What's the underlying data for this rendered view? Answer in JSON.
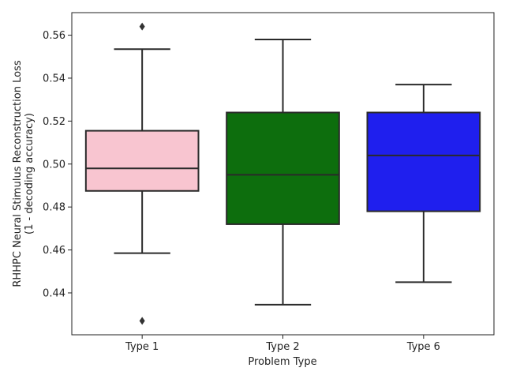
{
  "chart_data": {
    "type": "box",
    "title": "",
    "xlabel": "Problem Type",
    "ylabel_line1": "RHHPC Neural Stimulus Reconstruction Loss",
    "ylabel_line2": "(1 - decoding accuracy)",
    "ylim": [
      0.4205,
      0.5705
    ],
    "yticks": [
      0.44,
      0.46,
      0.48,
      0.5,
      0.52,
      0.54,
      0.56
    ],
    "ytick_labels": [
      "0.44",
      "0.46",
      "0.48",
      "0.50",
      "0.52",
      "0.54",
      "0.56"
    ],
    "grid": false,
    "legend": false,
    "categories": [
      "Type 1",
      "Type 2",
      "Type 6"
    ],
    "boxes": [
      {
        "category": "Type 1",
        "color": "#f8c5d0",
        "whisker_low": 0.4585,
        "q1": 0.4875,
        "median": 0.498,
        "q3": 0.5155,
        "whisker_high": 0.5535,
        "outliers": [
          0.564,
          0.427
        ]
      },
      {
        "category": "Type 2",
        "color": "#0d6e0d",
        "whisker_low": 0.4345,
        "q1": 0.472,
        "median": 0.495,
        "q3": 0.524,
        "whisker_high": 0.558,
        "outliers": []
      },
      {
        "category": "Type 6",
        "color": "#1f1fee",
        "whisker_low": 0.445,
        "q1": 0.478,
        "median": 0.504,
        "q3": 0.524,
        "whisker_high": 0.537,
        "outliers": []
      }
    ]
  }
}
